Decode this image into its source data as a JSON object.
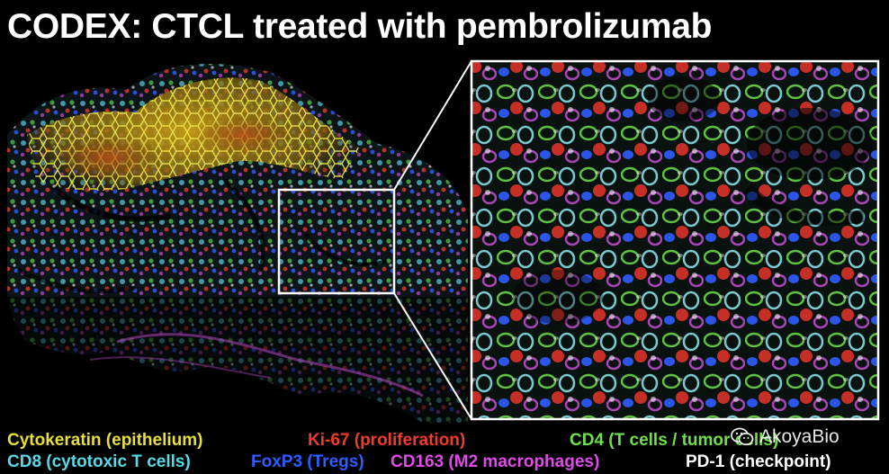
{
  "title": "CODEX: CTCL treated with pembrolizumab",
  "colors": {
    "cytokeratin": "#e8df3a",
    "ki67": "#f03a2a",
    "cd4": "#6fe04a",
    "cd8": "#59d8e8",
    "foxp3": "#2f5cff",
    "cd163": "#e04ae8",
    "pd1": "#ffffff"
  },
  "legend": {
    "cytokeratin": "Cytokeratin (epithelium)",
    "ki67": "Ki-67 (proliferation)",
    "cd4": "CD4 (T cells / tumor cells)",
    "cd8": "CD8 (cytotoxic T cells)",
    "foxp3": "FoxP3 (Tregs)",
    "cd163": "CD163 (M2 macrophages)",
    "pd1": "PD-1 (checkpoint)"
  },
  "watermark": {
    "text": "AkoyaBio",
    "icon": "wechat-icon"
  }
}
